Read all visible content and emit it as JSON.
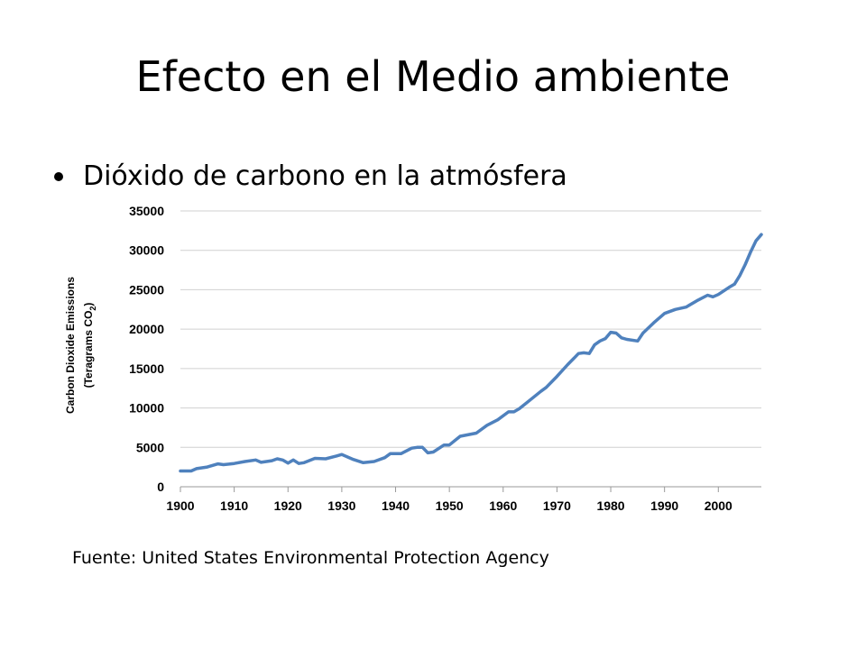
{
  "slide": {
    "title": "Efecto en el Medio ambiente",
    "bullet": "Dióxido de carbono en la atmósfera",
    "source": "Fuente: United States Environmental Protection Agency"
  },
  "chart_data": {
    "type": "line",
    "title": "",
    "xlabel": "",
    "ylabel_line1": "Carbon Dioxide Emissions",
    "ylabel_line2_main": "(Teragrams CO",
    "ylabel_line2_sub": "2",
    "ylabel_line2_end": ")",
    "xlim": [
      1900,
      2008
    ],
    "ylim": [
      0,
      35000
    ],
    "x_ticks": [
      1900,
      1910,
      1920,
      1930,
      1940,
      1950,
      1960,
      1970,
      1980,
      1990,
      2000
    ],
    "y_ticks": [
      0,
      5000,
      10000,
      15000,
      20000,
      25000,
      30000,
      35000
    ],
    "grid": true,
    "line_color": "#4f81bd",
    "series": [
      {
        "x": [
          1900,
          1902,
          1903,
          1905,
          1907,
          1908,
          1910,
          1912,
          1914,
          1915,
          1917,
          1918,
          1919,
          1920,
          1921,
          1922,
          1923,
          1925,
          1927,
          1929,
          1930,
          1932,
          1934,
          1936,
          1938,
          1939,
          1941,
          1943,
          1944,
          1945,
          1946,
          1947,
          1949,
          1950,
          1952,
          1955,
          1957,
          1959,
          1961,
          1962,
          1963,
          1965,
          1967,
          1968,
          1970,
          1972,
          1973,
          1974,
          1975,
          1976,
          1977,
          1978,
          1979,
          1980,
          1981,
          1982,
          1983,
          1985,
          1986,
          1988,
          1990,
          1992,
          1994,
          1996,
          1998,
          1999,
          2000,
          2002,
          2003,
          2004,
          2005,
          2006,
          2007,
          2008
        ],
        "y": [
          2000,
          2000,
          2300,
          2500,
          2900,
          2800,
          2950,
          3200,
          3400,
          3100,
          3300,
          3550,
          3400,
          3000,
          3400,
          2950,
          3050,
          3600,
          3550,
          3900,
          4100,
          3500,
          3050,
          3200,
          3700,
          4200,
          4200,
          4900,
          5000,
          5000,
          4300,
          4400,
          5300,
          5300,
          6400,
          6800,
          7800,
          8500,
          9500,
          9500,
          9900,
          11000,
          12100,
          12600,
          14000,
          15500,
          16200,
          16900,
          17000,
          16900,
          18000,
          18500,
          18800,
          19600,
          19500,
          18900,
          18700,
          18500,
          19500,
          20800,
          22000,
          22500,
          22800,
          23600,
          24300,
          24100,
          24400,
          25300,
          25700,
          26800,
          28200,
          29800,
          31200,
          32000
        ]
      }
    ]
  }
}
